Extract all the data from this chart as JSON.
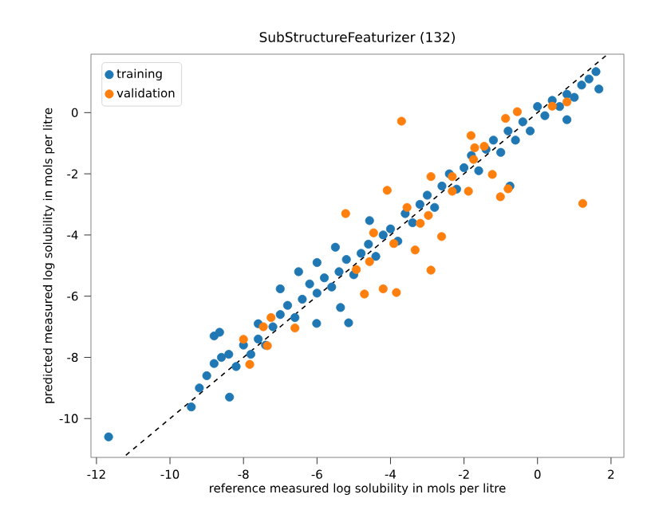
{
  "chart_data": {
    "type": "scatter",
    "title": "SubStructureFeaturizer (132)",
    "xlabel": "reference measured log solubility in mols per litre",
    "ylabel": "predicted measured log solubility in mols per litre",
    "xlim": [
      -12.15,
      2.35
    ],
    "ylim": [
      -11.27,
      1.91
    ],
    "xticks": [
      -12,
      -10,
      -8,
      -6,
      -4,
      -2,
      0,
      2
    ],
    "yticks": [
      -10,
      -8,
      -6,
      -4,
      -2,
      0
    ],
    "legend": "top left",
    "marker": "circle",
    "grid": false,
    "series": [
      {
        "name": "training",
        "color": "#1f77b4",
        "x": [
          -11.67,
          -9.42,
          -8.38,
          -8.65,
          -7.0,
          -6.01,
          -5.14,
          -5.36,
          1.67,
          1.59,
          0.8,
          -0.75,
          -4.57,
          -9.2,
          -9.0,
          -8.8,
          -8.6,
          -8.4,
          -8.2,
          -8.0,
          -7.8,
          -7.6,
          -7.4,
          -7.2,
          -7.0,
          -6.8,
          -6.6,
          -6.4,
          -6.2,
          -6.0,
          -5.8,
          -5.6,
          -5.4,
          -5.2,
          -5.0,
          -4.8,
          -4.6,
          -4.4,
          -4.2,
          -4.0,
          -3.8,
          -3.6,
          -3.4,
          -3.2,
          -3.0,
          -2.8,
          -2.6,
          -2.4,
          -2.2,
          -2.0,
          -1.8,
          -1.6,
          -1.4,
          -1.2,
          -1.0,
          -0.8,
          -0.6,
          -0.4,
          -0.2,
          0.0,
          0.2,
          0.4,
          0.6,
          0.8,
          1.0,
          1.2,
          1.4,
          -6.5,
          -6.0,
          -5.5,
          -7.6,
          -8.8
        ],
        "values": [
          -10.6,
          -9.62,
          -9.3,
          -7.18,
          -5.76,
          -6.89,
          -6.87,
          -6.37,
          0.77,
          1.34,
          -0.23,
          -2.4,
          -3.53,
          -9.0,
          -8.6,
          -8.2,
          -8.0,
          -7.9,
          -8.3,
          -7.6,
          -7.9,
          -7.4,
          -7.6,
          -7.0,
          -6.6,
          -6.3,
          -6.7,
          -6.1,
          -5.6,
          -5.9,
          -5.4,
          -5.7,
          -5.2,
          -4.8,
          -5.3,
          -4.6,
          -4.3,
          -4.7,
          -4.0,
          -3.8,
          -4.2,
          -3.3,
          -3.6,
          -3.0,
          -2.7,
          -3.1,
          -2.4,
          -2.0,
          -2.5,
          -1.8,
          -1.4,
          -1.9,
          -1.2,
          -0.9,
          -1.3,
          -0.6,
          -0.9,
          -0.3,
          -0.6,
          0.2,
          -0.1,
          0.4,
          0.2,
          0.6,
          0.5,
          0.9,
          1.1,
          -5.2,
          -4.9,
          -4.4,
          -6.9,
          -7.3
        ]
      },
      {
        "name": "validation",
        "color": "#ff7f0e",
        "x": [
          -3.7,
          1.23,
          -5.22,
          -4.09,
          -2.9,
          -4.71,
          -4.2,
          -3.84,
          -7.83,
          -8.0,
          -7.35,
          -7.25,
          -7.46,
          -6.6,
          -4.93,
          -4.57,
          -4.46,
          -3.91,
          -3.33,
          -3.55,
          -2.9,
          -2.32,
          -1.81,
          -1.71,
          -0.87,
          -0.55,
          0.8,
          0.4,
          -1.23,
          -1.01,
          -0.8,
          -2.97,
          -3.19,
          -2.32,
          -1.88,
          -2.61,
          -1.74,
          -1.45
        ],
        "values": [
          -0.28,
          -2.97,
          -3.3,
          -2.54,
          -5.15,
          -5.93,
          -5.76,
          -5.88,
          -8.23,
          -7.41,
          -7.62,
          -6.7,
          -7.0,
          -7.04,
          -5.13,
          -4.87,
          -3.93,
          -4.28,
          -4.49,
          -3.1,
          -2.09,
          -2.09,
          -0.75,
          -1.15,
          -0.19,
          0.03,
          0.35,
          0.21,
          -2.02,
          -2.75,
          -2.49,
          -3.36,
          -3.62,
          -2.57,
          -2.57,
          -4.05,
          -1.53,
          -1.1
        ]
      },
      {
        "type": "line",
        "color": "#000000",
        "line_style": "dashed",
        "marker": "none",
        "x": [
          -11.2,
          1.9
        ],
        "values": [
          -11.2,
          1.9
        ]
      }
    ]
  }
}
